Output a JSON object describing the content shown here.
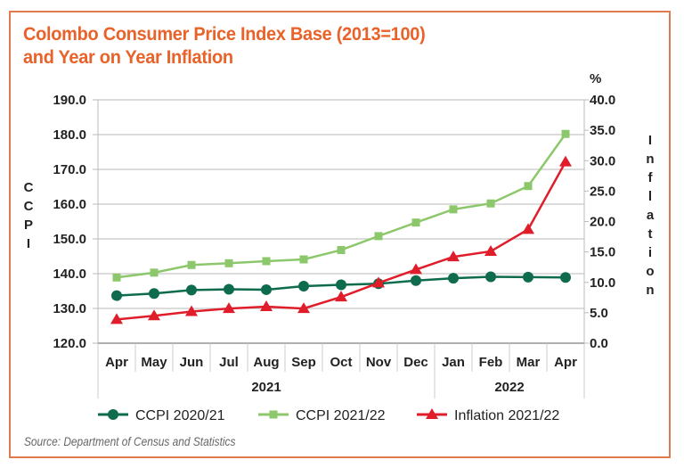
{
  "chart_data": {
    "type": "line",
    "title": "Colombo Consumer Price Index Base (2013=100)",
    "subtitle": "and Year on Year Inflation",
    "categories": [
      "Apr",
      "May",
      "Jun",
      "Jul",
      "Aug",
      "Sep",
      "Oct",
      "Nov",
      "Dec",
      "Jan",
      "Feb",
      "Mar",
      "Apr"
    ],
    "category_groups": [
      {
        "label": "2021",
        "count": 9
      },
      {
        "label": "2022",
        "count": 4
      }
    ],
    "ylabel_left": "CCPI",
    "ylabel_right": "Inflation",
    "yunit_right": "%",
    "ylim_left": [
      120,
      190
    ],
    "ylim_right": [
      0,
      40
    ],
    "yticks_left": [
      "120.0",
      "130.0",
      "140.0",
      "150.0",
      "160.0",
      "170.0",
      "180.0",
      "190.0"
    ],
    "yticks_right": [
      "0.0",
      "5.0",
      "10.0",
      "15.0",
      "20.0",
      "25.0",
      "30.0",
      "35.0",
      "40.0"
    ],
    "grid": true,
    "legend": "bottom",
    "series": [
      {
        "name": "CCPI 2020/21",
        "axis": "left",
        "color": "#0e6b4e",
        "marker": "circle",
        "values": [
          133.7,
          134.3,
          135.3,
          135.5,
          135.4,
          136.4,
          136.8,
          137.1,
          138.0,
          138.7,
          139.1,
          139.0,
          138.9
        ]
      },
      {
        "name": "CCPI 2021/22",
        "axis": "left",
        "color": "#8cc86b",
        "marker": "square",
        "values": [
          138.9,
          140.3,
          142.5,
          143.0,
          143.6,
          144.1,
          146.8,
          150.8,
          154.7,
          158.5,
          160.2,
          165.2,
          180.2
        ]
      },
      {
        "name": "Inflation 2021/22",
        "axis": "right",
        "color": "#e01e2b",
        "marker": "triangle",
        "values": [
          3.9,
          4.5,
          5.2,
          5.7,
          6.0,
          5.7,
          7.6,
          9.9,
          12.1,
          14.2,
          15.1,
          18.7,
          29.8
        ]
      }
    ]
  },
  "source": "Source: Department of Census and Statistics"
}
